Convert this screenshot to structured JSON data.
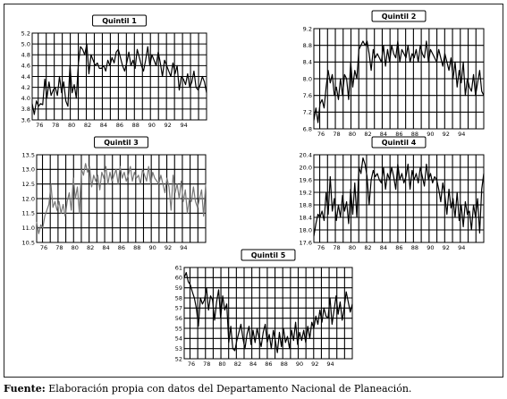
{
  "source": {
    "label": "Fuente:",
    "text": "Elaboración propia con datos del Departamento Nacional de Planeación."
  },
  "chart_data": [
    {
      "type": "line",
      "title": "Quintil 1",
      "ylim": [
        3.6,
        5.2
      ],
      "yticks": [
        3.6,
        3.8,
        4.0,
        4.2,
        4.4,
        4.6,
        4.8,
        5.0,
        5.2
      ],
      "xlim": [
        1975.25,
        1997
      ],
      "xticks": [
        "76",
        "78",
        "80",
        "82",
        "84",
        "86",
        "88",
        "90",
        "92",
        "94"
      ],
      "grid": true,
      "color": "#000000",
      "values": [
        3.9,
        3.7,
        3.95,
        3.85,
        3.9,
        3.88,
        4.35,
        4.0,
        4.3,
        4.05,
        4.15,
        4.2,
        4.05,
        4.4,
        4.1,
        4.3,
        3.95,
        3.85,
        4.6,
        4.1,
        4.25,
        4.0,
        4.65,
        4.95,
        4.9,
        4.8,
        5.0,
        4.45,
        4.8,
        4.7,
        4.6,
        4.65,
        4.55,
        4.55,
        4.6,
        4.5,
        4.7,
        4.6,
        4.75,
        4.65,
        4.85,
        4.9,
        4.75,
        4.6,
        4.5,
        4.65,
        4.85,
        4.6,
        4.7,
        4.55,
        4.9,
        4.75,
        4.6,
        4.5,
        4.7,
        4.95,
        4.6,
        4.8,
        4.7,
        4.6,
        4.85,
        4.65,
        4.4,
        4.7,
        4.6,
        4.5,
        4.4,
        4.65,
        4.45,
        4.6,
        4.15,
        4.4,
        4.35,
        4.25,
        4.45,
        4.2,
        4.3,
        4.5,
        4.2,
        4.15,
        4.25,
        4.4,
        4.3,
        4.1
      ]
    },
    {
      "type": "line",
      "title": "Quintil 2",
      "ylim": [
        6.8,
        9.2
      ],
      "yticks": [
        6.8,
        7.2,
        7.6,
        8.0,
        8.4,
        8.8,
        9.2
      ],
      "xlim": [
        1975.25,
        1997
      ],
      "xticks": [
        "76",
        "78",
        "80",
        "82",
        "84",
        "86",
        "88",
        "90",
        "92",
        "94"
      ],
      "grid": true,
      "color": "#000000",
      "values": [
        7.0,
        7.3,
        6.95,
        7.4,
        7.5,
        7.3,
        7.8,
        8.2,
        7.9,
        8.1,
        7.6,
        7.8,
        7.5,
        8.0,
        7.6,
        8.1,
        8.0,
        7.5,
        8.4,
        7.8,
        8.2,
        8.0,
        8.7,
        8.8,
        8.9,
        8.8,
        8.9,
        8.6,
        8.2,
        8.7,
        8.5,
        8.6,
        8.5,
        8.4,
        8.8,
        8.3,
        8.7,
        8.4,
        8.8,
        8.6,
        8.5,
        8.9,
        8.4,
        8.7,
        8.6,
        8.5,
        8.8,
        8.4,
        8.6,
        8.5,
        8.7,
        8.4,
        8.8,
        8.6,
        8.5,
        8.9,
        8.4,
        8.7,
        8.6,
        8.5,
        8.4,
        8.7,
        8.5,
        8.3,
        8.6,
        8.4,
        8.2,
        8.5,
        8.0,
        8.4,
        7.8,
        8.2,
        7.9,
        8.4,
        7.6,
        8.0,
        7.8,
        7.7,
        8.1,
        7.6,
        7.9,
        8.2,
        7.7,
        7.6
      ]
    },
    {
      "type": "line",
      "title": "Quintil 3",
      "ylim": [
        10.5,
        13.5
      ],
      "yticks": [
        10.5,
        11.0,
        11.5,
        12.0,
        12.5,
        13.0,
        13.5
      ],
      "xlim": [
        1975.25,
        1997
      ],
      "xticks": [
        "76",
        "78",
        "80",
        "82",
        "84",
        "86",
        "88",
        "90",
        "92",
        "94"
      ],
      "grid": true,
      "color": "#777777",
      "values": [
        11.2,
        10.8,
        11.1,
        11.0,
        11.4,
        11.6,
        11.8,
        12.5,
        11.7,
        11.9,
        11.6,
        11.9,
        11.5,
        11.8,
        11.4,
        11.9,
        12.2,
        11.6,
        12.7,
        12.0,
        12.4,
        11.5,
        13.0,
        12.8,
        13.2,
        12.9,
        13.1,
        12.4,
        12.8,
        12.6,
        12.8,
        12.3,
        12.9,
        12.7,
        13.1,
        12.5,
        12.9,
        12.6,
        12.8,
        13.0,
        12.5,
        13.1,
        12.7,
        12.9,
        12.6,
        12.8,
        13.1,
        12.6,
        12.9,
        12.7,
        12.8,
        12.5,
        13.0,
        12.8,
        12.6,
        13.1,
        12.5,
        12.9,
        12.7,
        12.6,
        12.5,
        12.8,
        12.5,
        12.2,
        12.7,
        12.4,
        11.6,
        12.8,
        12.2,
        12.5,
        12.0,
        12.6,
        11.9,
        12.3,
        11.5,
        12.0,
        11.9,
        12.4,
        11.9,
        11.7,
        12.0,
        12.3,
        11.4,
        12.5
      ]
    },
    {
      "type": "line",
      "title": "Quintil 4",
      "ylim": [
        17.6,
        20.4
      ],
      "yticks": [
        17.6,
        18.0,
        18.4,
        18.8,
        19.2,
        19.6,
        20.0,
        20.4
      ],
      "xlim": [
        1975.25,
        1997
      ],
      "xticks": [
        "76",
        "78",
        "80",
        "82",
        "84",
        "86",
        "88",
        "90",
        "92",
        "94"
      ],
      "grid": true,
      "color": "#000000",
      "values": [
        17.8,
        18.2,
        18.5,
        18.4,
        18.6,
        18.3,
        19.2,
        18.5,
        19.7,
        18.6,
        19.0,
        18.3,
        18.8,
        18.4,
        19.1,
        18.6,
        18.9,
        18.2,
        19.3,
        18.5,
        19.5,
        18.4,
        20.0,
        19.8,
        20.3,
        20.1,
        19.7,
        18.8,
        19.6,
        19.9,
        19.7,
        19.8,
        19.6,
        19.5,
        20.0,
        19.3,
        19.8,
        19.6,
        20.0,
        19.7,
        19.3,
        20.1,
        19.6,
        19.8,
        19.5,
        19.7,
        20.1,
        19.3,
        19.9,
        19.6,
        19.8,
        19.5,
        20.0,
        19.7,
        19.4,
        20.1,
        19.6,
        19.8,
        19.5,
        19.7,
        19.6,
        19.3,
        18.9,
        19.5,
        19.1,
        18.5,
        19.3,
        18.7,
        19.0,
        18.4,
        19.2,
        18.3,
        18.8,
        18.1,
        18.9,
        18.5,
        18.6,
        18.0,
        18.8,
        18.4,
        19.0,
        17.9,
        19.3,
        19.8
      ]
    },
    {
      "type": "line",
      "title": "Quintil 5",
      "ylim": [
        52,
        61
      ],
      "yticks": [
        52,
        53,
        54,
        55,
        56,
        57,
        58,
        59,
        60,
        61
      ],
      "xlim": [
        1975.25,
        1997
      ],
      "xticks": [
        "76",
        "78",
        "80",
        "82",
        "84",
        "86",
        "88",
        "90",
        "92",
        "94"
      ],
      "grid": true,
      "color": "#000000",
      "values": [
        60.0,
        60.5,
        59.6,
        59.3,
        58.6,
        58.0,
        57.0,
        55.2,
        58.0,
        57.4,
        57.8,
        59.0,
        56.8,
        58.2,
        57.8,
        55.8,
        57.6,
        58.8,
        56.0,
        58.2,
        56.8,
        57.4,
        53.6,
        55.2,
        53.0,
        52.8,
        53.8,
        54.6,
        55.4,
        54.0,
        53.0,
        54.4,
        55.2,
        53.4,
        54.8,
        53.6,
        55.0,
        54.0,
        53.2,
        54.6,
        55.4,
        53.6,
        54.4,
        53.0,
        54.8,
        53.8,
        52.6,
        54.6,
        53.2,
        55.0,
        53.6,
        54.2,
        53.0,
        54.8,
        53.8,
        55.6,
        53.4,
        54.6,
        53.8,
        54.8,
        53.6,
        55.2,
        54.0,
        55.6,
        55.0,
        56.2,
        55.4,
        56.8,
        55.6,
        57.0,
        56.2,
        56.0,
        58.0,
        55.4,
        56.8,
        58.2,
        56.4,
        57.6,
        55.8,
        57.0,
        58.6,
        57.6,
        56.6,
        57.4
      ]
    }
  ]
}
